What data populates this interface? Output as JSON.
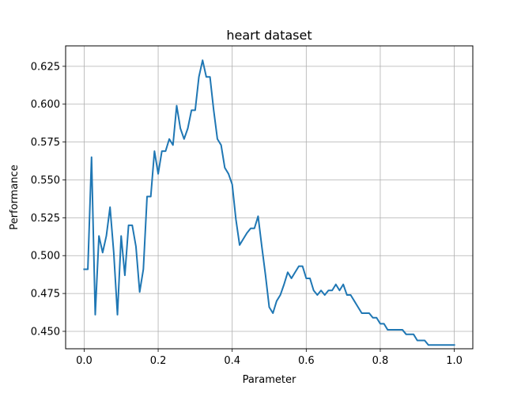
{
  "chart_data": {
    "type": "line",
    "title": "heart dataset",
    "xlabel": "Parameter",
    "ylabel": "Performance",
    "xlim": [
      -0.05,
      1.05
    ],
    "ylim": [
      0.4385,
      0.6385
    ],
    "xticks": [
      0.0,
      0.2,
      0.4,
      0.6,
      0.8,
      1.0
    ],
    "xtick_labels": [
      "0.0",
      "0.2",
      "0.4",
      "0.6",
      "0.8",
      "1.0"
    ],
    "yticks": [
      0.45,
      0.475,
      0.5,
      0.525,
      0.55,
      0.575,
      0.6,
      0.625
    ],
    "ytick_labels": [
      "0.450",
      "0.475",
      "0.500",
      "0.525",
      "0.550",
      "0.575",
      "0.600",
      "0.625"
    ],
    "grid": true,
    "line_color": "#1f77b4",
    "series": [
      {
        "x": [
          0.0,
          0.01,
          0.02,
          0.03,
          0.04,
          0.05,
          0.06,
          0.07,
          0.08,
          0.09,
          0.1,
          0.11,
          0.12,
          0.13,
          0.14,
          0.15,
          0.16,
          0.17,
          0.18,
          0.19,
          0.2,
          0.21,
          0.22,
          0.23,
          0.24,
          0.25,
          0.26,
          0.27,
          0.28,
          0.29,
          0.3,
          0.31,
          0.32,
          0.33,
          0.34,
          0.35,
          0.36,
          0.37,
          0.38,
          0.39,
          0.4,
          0.41,
          0.42,
          0.43,
          0.44,
          0.45,
          0.46,
          0.47,
          0.48,
          0.49,
          0.5,
          0.51,
          0.52,
          0.53,
          0.54,
          0.55,
          0.56,
          0.57,
          0.58,
          0.59,
          0.6,
          0.61,
          0.62,
          0.63,
          0.64,
          0.65,
          0.66,
          0.67,
          0.68,
          0.69,
          0.7,
          0.71,
          0.72,
          0.73,
          0.74,
          0.75,
          0.76,
          0.77,
          0.78,
          0.79,
          0.8,
          0.81,
          0.82,
          0.83,
          0.84,
          0.85,
          0.86,
          0.87,
          0.88,
          0.89,
          0.9,
          0.91,
          0.92,
          0.93,
          0.94,
          0.95,
          0.96,
          0.97,
          0.98,
          0.99,
          1.0
        ],
        "y": [
          0.491,
          0.491,
          0.565,
          0.461,
          0.513,
          0.502,
          0.513,
          0.532,
          0.502,
          0.461,
          0.513,
          0.487,
          0.52,
          0.52,
          0.506,
          0.476,
          0.491,
          0.539,
          0.539,
          0.569,
          0.554,
          0.569,
          0.569,
          0.577,
          0.573,
          0.599,
          0.584,
          0.577,
          0.584,
          0.596,
          0.596,
          0.618,
          0.629,
          0.618,
          0.618,
          0.596,
          0.577,
          0.573,
          0.558,
          0.554,
          0.547,
          0.524,
          0.507,
          0.511,
          0.515,
          0.518,
          0.518,
          0.526,
          0.506,
          0.487,
          0.466,
          0.462,
          0.47,
          0.474,
          0.481,
          0.489,
          0.485,
          0.489,
          0.493,
          0.493,
          0.485,
          0.485,
          0.477,
          0.474,
          0.477,
          0.474,
          0.477,
          0.477,
          0.481,
          0.477,
          0.481,
          0.474,
          0.474,
          0.47,
          0.466,
          0.462,
          0.462,
          0.462,
          0.459,
          0.459,
          0.455,
          0.455,
          0.451,
          0.451,
          0.451,
          0.451,
          0.451,
          0.448,
          0.448,
          0.448,
          0.444,
          0.444,
          0.444,
          0.441,
          0.441,
          0.441,
          0.441,
          0.441,
          0.441,
          0.441,
          0.441
        ]
      }
    ]
  }
}
